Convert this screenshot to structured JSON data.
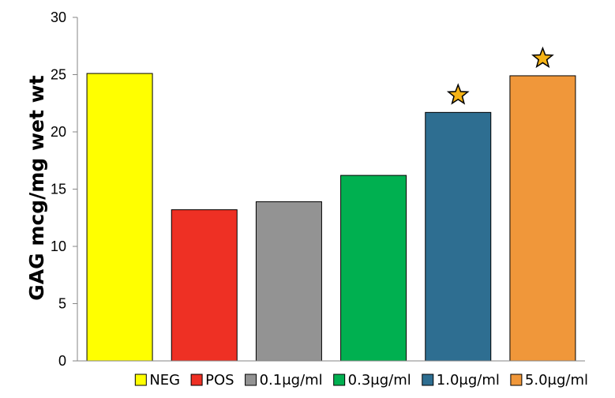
{
  "chart_data": {
    "type": "bar",
    "title": "",
    "xlabel": "",
    "ylabel": "GAG mcg/mg wet wt",
    "ylim": [
      0,
      30
    ],
    "yticks": [
      0,
      5,
      10,
      15,
      20,
      25,
      30
    ],
    "grid": false,
    "legend_position": "bottom",
    "categories": [
      "NEG",
      "POS",
      "0.1μg/ml",
      "0.3μg/ml",
      "1.0μg/ml",
      "5.0μg/ml"
    ],
    "values": [
      25.1,
      13.2,
      13.9,
      16.2,
      21.7,
      24.9
    ],
    "colors": [
      "#ffff00",
      "#ee3024",
      "#939393",
      "#00b050",
      "#2e6e91",
      "#f0973a"
    ],
    "significance_markers": [
      false,
      false,
      false,
      false,
      true,
      true
    ],
    "marker_icon": "star-icon",
    "marker_color": "#f5b316"
  }
}
